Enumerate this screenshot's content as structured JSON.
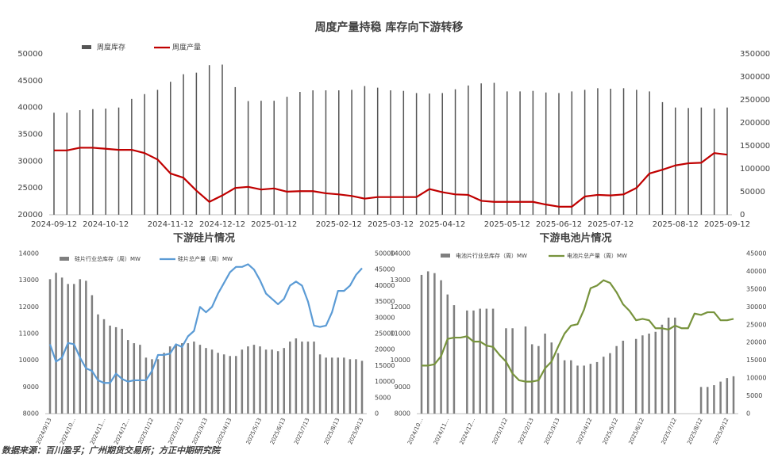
{
  "chart_data": [
    {
      "type": "combo",
      "title": "周度产量持稳 库存向下游转移",
      "legend": "top",
      "categories": [
        "2024-09-12",
        null,
        null,
        null,
        "2024-10-12",
        null,
        null,
        null,
        null,
        "2024-11-12",
        null,
        null,
        null,
        "2024-12-12",
        null,
        null,
        null,
        "2025-01-12",
        null,
        null,
        null,
        null,
        "2025-02-12",
        null,
        null,
        null,
        "2025-03-12",
        null,
        null,
        null,
        "2025-04-12",
        null,
        null,
        null,
        null,
        "2025-05-12",
        null,
        null,
        null,
        "2025-06-12",
        null,
        null,
        null,
        "2025-07-12",
        null,
        null,
        null,
        null,
        "2025-08-12",
        null,
        null,
        null,
        "2025-09-12"
      ],
      "series": [
        {
          "name": "周度库存",
          "type": "bar",
          "axis": "y2",
          "color": "#555555",
          "values": [
            222000,
            222000,
            227500,
            229800,
            231000,
            233300,
            252000,
            262500,
            271800,
            289300,
            305700,
            309200,
            325500,
            326700,
            277700,
            247300,
            248000,
            248000,
            256700,
            267200,
            270700,
            270700,
            270700,
            271800,
            280000,
            276500,
            270700,
            269500,
            264800,
            263700,
            264800,
            273000,
            281200,
            285800,
            287000,
            268300,
            268300,
            269500,
            266000,
            264800,
            268300,
            271800,
            275300,
            274200,
            275300,
            271800,
            268300,
            245000,
            233300,
            232200,
            233300,
            231000,
            233300
          ]
        },
        {
          "name": "周度产量",
          "type": "line",
          "color": "#c00000",
          "values": [
            32000,
            32000,
            32500,
            32500,
            32300,
            32100,
            32100,
            31500,
            30300,
            27700,
            26900,
            24500,
            22400,
            23600,
            25000,
            25200,
            24700,
            24900,
            24300,
            24400,
            24400,
            24000,
            23800,
            23500,
            23000,
            23300,
            23300,
            23300,
            23300,
            24800,
            24200,
            23800,
            23700,
            22600,
            22400,
            22400,
            22400,
            22400,
            21900,
            21500,
            21500,
            23400,
            23700,
            23600,
            23800,
            25000,
            27700,
            28400,
            29200,
            29600,
            29700,
            31500,
            31200
          ]
        }
      ],
      "ylim": [
        20000,
        50000
      ],
      "yticks": [
        20000,
        25000,
        30000,
        35000,
        40000,
        45000,
        50000
      ],
      "y2lim": [
        0,
        350000
      ],
      "y2ticks": [
        0,
        50000,
        100000,
        150000,
        200000,
        250000,
        300000,
        350000
      ],
      "grid": false
    },
    {
      "type": "combo",
      "title": "下游硅片情况",
      "legend": "top",
      "categories": [
        "2024/9/13",
        null,
        null,
        null,
        "2024/10…",
        null,
        null,
        null,
        null,
        "2024/11…",
        null,
        null,
        null,
        "2024/12…",
        null,
        null,
        null,
        "2025/1/12",
        null,
        null,
        null,
        null,
        "2025/2/13",
        null,
        null,
        null,
        "2025/3/13",
        null,
        null,
        null,
        "2025/4/13",
        null,
        null,
        null,
        null,
        "2025/5/13",
        null,
        null,
        null,
        "2025/6/13",
        null,
        null,
        null,
        "2025/7/13",
        null,
        null,
        null,
        null,
        "2025/8/13",
        null,
        null,
        null,
        "2025/9/13"
      ],
      "series": [
        {
          "name": "硅片行业总库存（周）MW",
          "type": "bar",
          "axis": "y2",
          "color": "#7f7f7f",
          "values": [
            42000,
            44000,
            42500,
            40500,
            40500,
            42000,
            41500,
            37000,
            31000,
            29500,
            27500,
            27000,
            26500,
            23000,
            22000,
            21500,
            17500,
            17000,
            17000,
            19000,
            21000,
            21500,
            22000,
            22000,
            22500,
            21500,
            20500,
            20000,
            19000,
            18500,
            18000,
            18000,
            20000,
            21000,
            21500,
            21000,
            20000,
            20000,
            19500,
            20500,
            22500,
            23500,
            22500,
            22500,
            22500,
            18500,
            17500,
            17500,
            17500,
            17500,
            17000,
            17000,
            16500
          ]
        },
        {
          "name": "硅片总产量（周）MW",
          "type": "line",
          "color": "#5b9bd5",
          "values": [
            10600,
            9950,
            10100,
            10650,
            10600,
            10100,
            9700,
            9600,
            9250,
            9150,
            9150,
            9500,
            9300,
            9200,
            9250,
            9250,
            9250,
            9600,
            10200,
            10200,
            10250,
            10600,
            10500,
            10900,
            11100,
            12000,
            11800,
            12000,
            12500,
            12900,
            13300,
            13500,
            13500,
            13600,
            13400,
            13000,
            12500,
            12300,
            12100,
            12300,
            12800,
            12950,
            12800,
            12200,
            11300,
            11250,
            11300,
            11800,
            12600,
            12600,
            12800,
            13200,
            13450
          ]
        }
      ],
      "ylim": [
        8000,
        14000
      ],
      "yticks": [
        8000,
        9000,
        10000,
        11000,
        12000,
        13000,
        14000
      ],
      "y2lim": [
        0,
        50000
      ],
      "y2ticks": [
        0,
        5000,
        10000,
        15000,
        20000,
        25000,
        30000,
        35000,
        40000,
        45000,
        50000
      ],
      "grid": false
    },
    {
      "type": "combo",
      "title": "下游电池片情况",
      "legend": "top",
      "categories": [
        "2024/10…",
        null,
        null,
        null,
        "2024/11…",
        null,
        null,
        null,
        "2024/12…",
        null,
        null,
        null,
        null,
        "2025/1/12",
        null,
        null,
        null,
        "2025/2/13",
        null,
        null,
        null,
        "2025/3/13",
        null,
        null,
        null,
        null,
        "2025/4/12",
        null,
        null,
        null,
        "2025/5/12",
        null,
        null,
        null,
        "2025/6/12",
        null,
        null,
        null,
        null,
        "2025/7/12",
        null,
        null,
        null,
        "2025/8/12",
        null,
        null,
        null,
        "2025/9/12",
        null
      ],
      "series": [
        {
          "name": "电池片行业总库存（周）MW",
          "type": "bar",
          "axis": "y2",
          "color": "#7f7f7f",
          "values": [
            39000,
            40000,
            39500,
            37500,
            33500,
            30500,
            null,
            29000,
            29000,
            29500,
            29500,
            29500,
            null,
            24000,
            24000,
            null,
            24500,
            19500,
            19000,
            22500,
            20000,
            17000,
            15000,
            15000,
            13500,
            13500,
            14000,
            14500,
            16000,
            17000,
            19000,
            20500,
            null,
            21000,
            22000,
            22500,
            23000,
            25000,
            27000,
            27000,
            null,
            null,
            null,
            7500,
            7500,
            8000,
            9000,
            10000,
            10500
          ]
        },
        {
          "name": "电池片总产量（周）MW",
          "type": "line",
          "color": "#77933c",
          "values": [
            9800,
            9800,
            9850,
            10150,
            10800,
            10850,
            10850,
            10900,
            10700,
            10700,
            10550,
            10500,
            10200,
            9950,
            9500,
            9250,
            9200,
            9200,
            9250,
            9700,
            9950,
            10500,
            11000,
            11300,
            11350,
            11900,
            12700,
            12800,
            13000,
            12900,
            12550,
            12100,
            11850,
            11500,
            11550,
            11500,
            11200,
            11200,
            11150,
            11300,
            11200,
            11200,
            11750,
            11700,
            11800,
            11800,
            11500,
            11500,
            11550
          ]
        }
      ],
      "ylim": [
        8000,
        14000
      ],
      "yticks": [
        8000,
        9000,
        10000,
        11000,
        12000,
        13000,
        14000
      ],
      "y2lim": [
        0,
        45000
      ],
      "y2ticks": [
        0,
        5000,
        10000,
        15000,
        20000,
        25000,
        30000,
        35000,
        40000,
        45000
      ],
      "grid": false
    }
  ],
  "footer": {
    "source": "数据来源：百川盈孚；广州期货交易所；方正中期研究院"
  }
}
